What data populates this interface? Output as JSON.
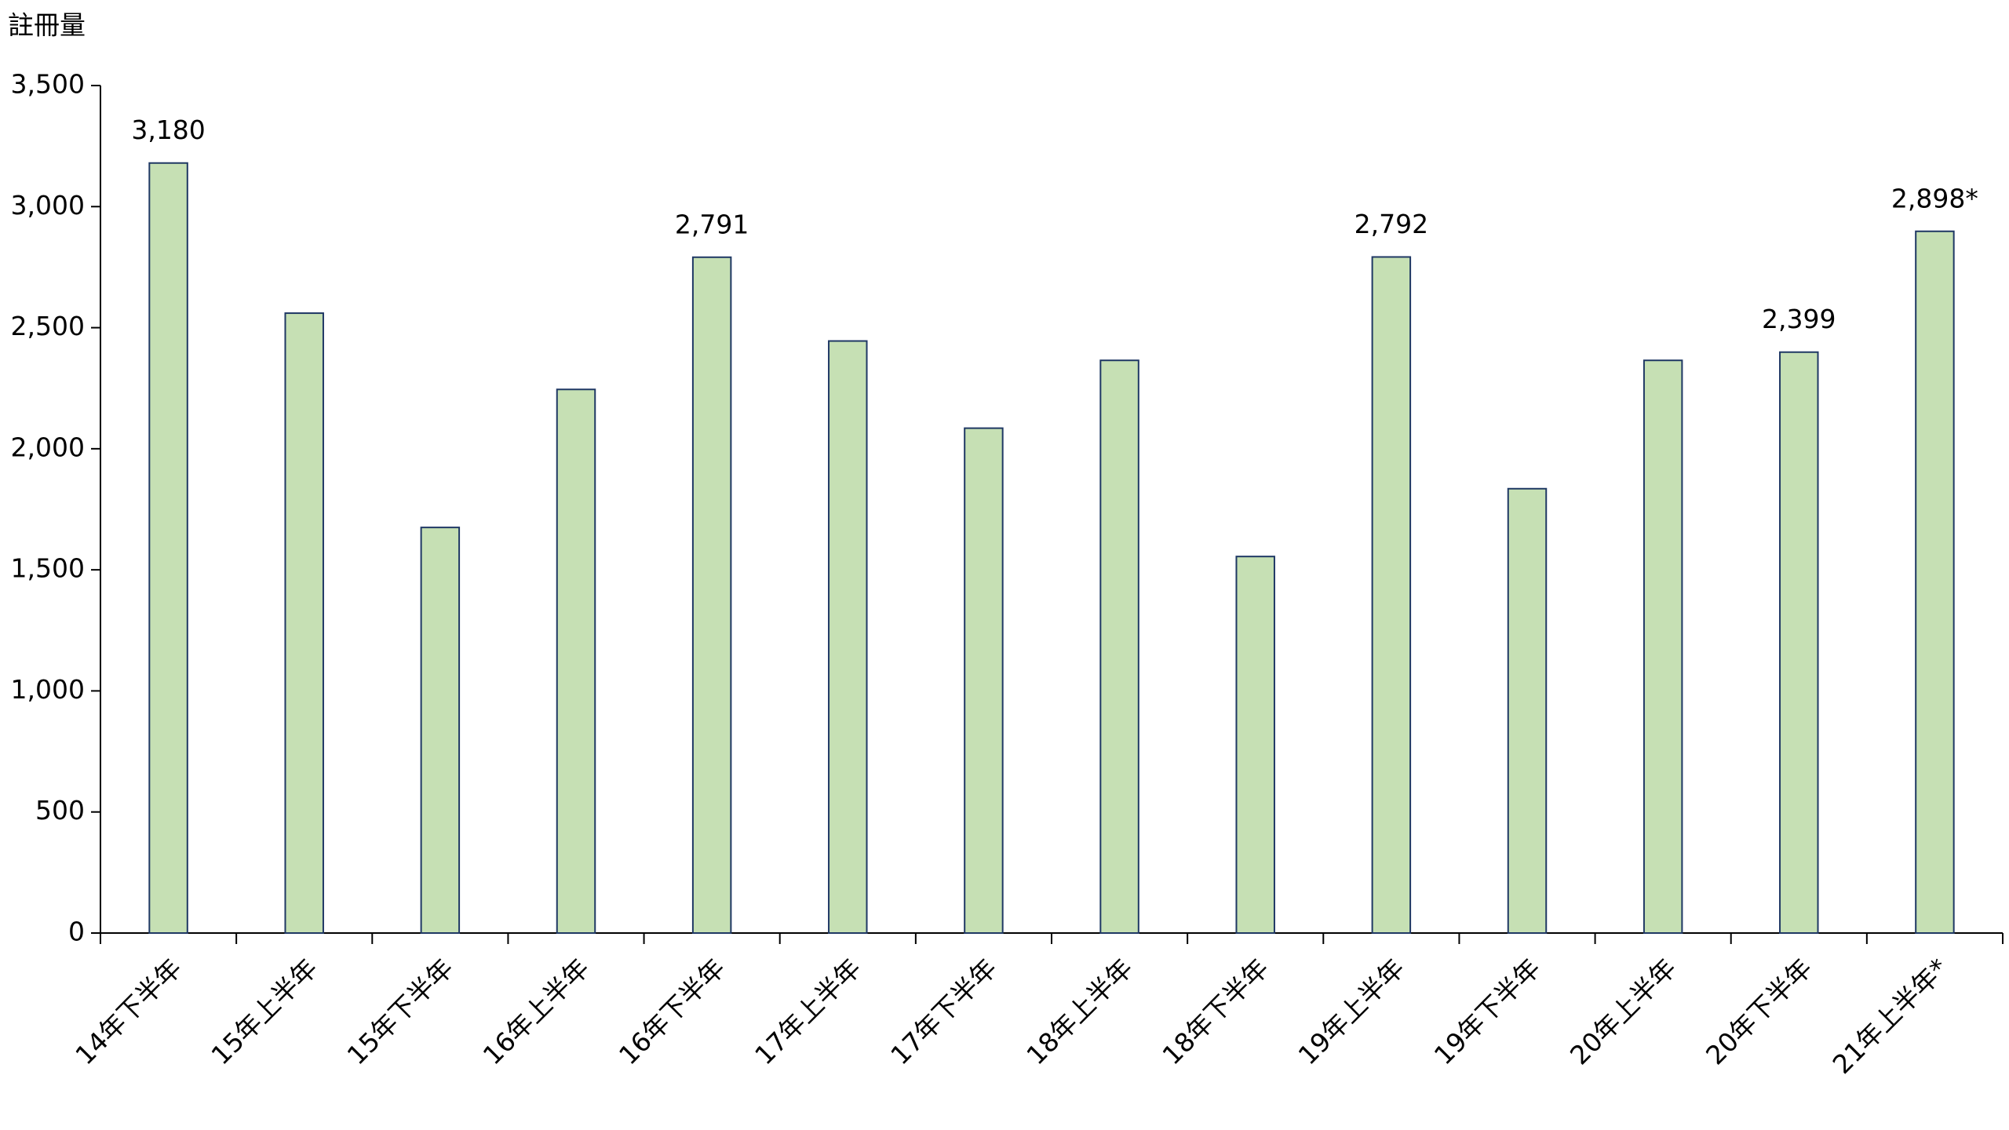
{
  "chart_data": {
    "type": "bar",
    "y_axis_label": "註冊量",
    "categories": [
      "14年下半年",
      "15年上半年",
      "15年下半年",
      "16年上半年",
      "16年下半年",
      "17年上半年",
      "17年下半年",
      "18年上半年",
      "18年下半年",
      "19年上半年",
      "19年下半年",
      "20年上半年",
      "20年下半年",
      "21年上半年*"
    ],
    "values": [
      3180,
      2560,
      1675,
      2245,
      2791,
      2445,
      2085,
      2365,
      1555,
      2792,
      1835,
      2365,
      2399,
      2898
    ],
    "value_labels": [
      "3,180",
      null,
      null,
      null,
      "2,791",
      null,
      null,
      null,
      null,
      "2,792",
      null,
      null,
      "2,399",
      "2,898*"
    ],
    "color": "#c6e0b4",
    "edge_color": "#1f3864",
    "ylim": [
      0,
      3500
    ],
    "yticks": [
      0,
      500,
      {
        "value": 1000,
        "label": "1,000"
      },
      {
        "value": 1500,
        "label": "1,500"
      },
      {
        "value": 2000,
        "label": "2,000"
      },
      {
        "value": 2500,
        "label": "2,500"
      },
      {
        "value": 3000,
        "label": "3,000"
      },
      {
        "value": 3500,
        "label": "3,500"
      }
    ],
    "grid": false
  }
}
